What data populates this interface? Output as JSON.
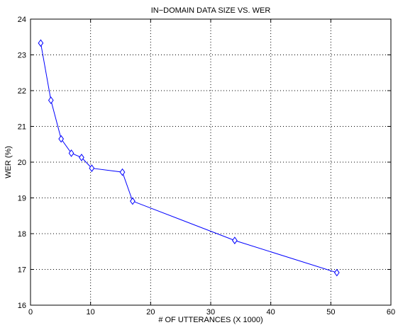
{
  "chart_data": {
    "type": "line",
    "title": "IN−DOMAIN DATA SIZE VS. WER",
    "xlabel": "# OF UTTERANCES (X 1000)",
    "ylabel": "WER (%)",
    "xlim": [
      0,
      60
    ],
    "ylim": [
      16,
      24
    ],
    "xticks": [
      0,
      10,
      20,
      30,
      40,
      50,
      60
    ],
    "yticks": [
      16,
      17,
      18,
      19,
      20,
      21,
      22,
      23,
      24
    ],
    "grid": "dotted",
    "marker": "diamond",
    "color": "#0000ff",
    "series": [
      {
        "x": [
          1.7,
          3.4,
          5.1,
          6.8,
          8.5,
          10.2,
          15.3,
          17.0,
          34.0,
          51.0
        ],
        "y": [
          23.33,
          21.73,
          20.65,
          20.25,
          20.13,
          19.83,
          19.72,
          18.91,
          17.81,
          16.91
        ]
      }
    ]
  }
}
